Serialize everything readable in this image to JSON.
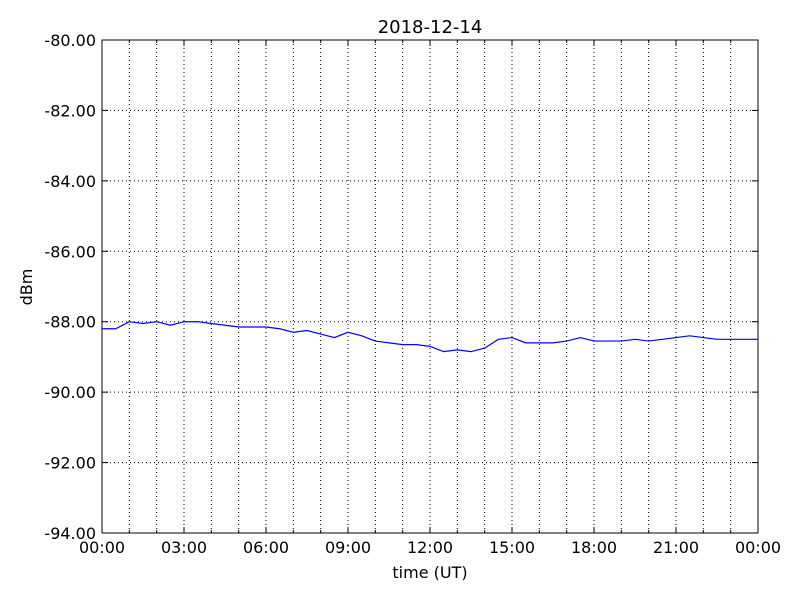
{
  "chart_data": {
    "type": "line",
    "title": "2018-12-14",
    "xlabel": "time (UT)",
    "ylabel": "dBm",
    "x": [
      0,
      0.5,
      1,
      1.5,
      2,
      2.5,
      3,
      3.5,
      4,
      4.5,
      5,
      5.5,
      6,
      6.5,
      7,
      7.5,
      8,
      8.5,
      9,
      9.5,
      10,
      10.5,
      11,
      11.5,
      12,
      12.5,
      13,
      13.5,
      14,
      14.5,
      15,
      15.5,
      16,
      16.5,
      17,
      17.5,
      18,
      18.5,
      19,
      19.5,
      20,
      20.5,
      21,
      21.5,
      22,
      22.5,
      23,
      23.5,
      24
    ],
    "series": [
      {
        "color": "#0000ff",
        "values": [
          -88.2,
          -88.2,
          -88.0,
          -88.05,
          -88.0,
          -88.1,
          -88.0,
          -88.0,
          -88.05,
          -88.1,
          -88.15,
          -88.15,
          -88.15,
          -88.2,
          -88.3,
          -88.25,
          -88.35,
          -88.45,
          -88.3,
          -88.4,
          -88.55,
          -88.6,
          -88.65,
          -88.65,
          -88.7,
          -88.85,
          -88.8,
          -88.85,
          -88.75,
          -88.5,
          -88.45,
          -88.6,
          -88.6,
          -88.6,
          -88.55,
          -88.45,
          -88.55,
          -88.55,
          -88.55,
          -88.5,
          -88.55,
          -88.5,
          -88.45,
          -88.4,
          -88.45,
          -88.5,
          -88.5,
          -88.5,
          -88.5
        ]
      }
    ],
    "xlim": [
      0,
      24
    ],
    "xticks": [
      {
        "value": 0,
        "label": "00:00"
      },
      {
        "value": 3,
        "label": "03:00"
      },
      {
        "value": 6,
        "label": "06:00"
      },
      {
        "value": 9,
        "label": "09:00"
      },
      {
        "value": 12,
        "label": "12:00"
      },
      {
        "value": 15,
        "label": "15:00"
      },
      {
        "value": 18,
        "label": "18:00"
      },
      {
        "value": 21,
        "label": "21:00"
      },
      {
        "value": 24,
        "label": "00:00"
      }
    ],
    "xgrid": [
      1,
      2,
      4,
      5,
      7,
      8,
      10,
      11,
      13,
      14,
      16,
      17,
      19,
      20,
      22,
      23
    ],
    "ylim": [
      -94,
      -80
    ],
    "yticks": [
      {
        "value": -94,
        "label": "-94.00"
      },
      {
        "value": -92,
        "label": "-92.00"
      },
      {
        "value": -90,
        "label": "-90.00"
      },
      {
        "value": -88,
        "label": "-88.00"
      },
      {
        "value": -86,
        "label": "-86.00"
      },
      {
        "value": -84,
        "label": "-84.00"
      },
      {
        "value": -82,
        "label": "-82.00"
      },
      {
        "value": -80,
        "label": "-80.00"
      }
    ],
    "grid": true
  }
}
